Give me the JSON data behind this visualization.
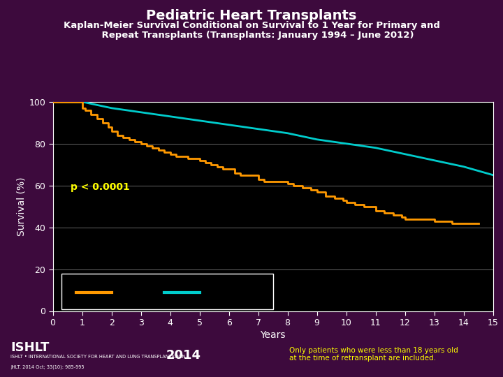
{
  "title": "Pediatric Heart Transplants",
  "subtitle_line1": "Kaplan-Meier Survival Conditional on Survival to 1 Year for Primary and",
  "subtitle_line2": "    Repeat Transplants (Transplants: January 1994 – June 2012)",
  "xlabel": "Years",
  "ylabel": "Survival (%)",
  "bg_outer": "#3d0a3d",
  "bg_plot": "#000000",
  "title_color": "#ffffff",
  "subtitle_color": "#ffffff",
  "axis_label_color": "#ffffff",
  "tick_color": "#ffffff",
  "grid_color": "#666666",
  "pvalue_text": "p < 0.0001",
  "pvalue_color": "#ffff00",
  "annotation_text": "Only patients who were less than 18 years old\nat the time of retransplant are included.",
  "annotation_color": "#ffff00",
  "xlim": [
    0,
    15
  ],
  "ylim": [
    0,
    100
  ],
  "xticks": [
    0,
    1,
    2,
    3,
    4,
    5,
    6,
    7,
    8,
    9,
    10,
    11,
    12,
    13,
    14,
    15
  ],
  "yticks": [
    0,
    20,
    40,
    60,
    80,
    100
  ],
  "primary_color": "#00cccc",
  "repeat_color": "#ff9900",
  "primary_x": [
    0,
    1,
    2,
    3,
    4,
    5,
    6,
    7,
    8,
    9,
    10,
    11,
    12,
    13,
    14,
    15
  ],
  "primary_y": [
    100,
    100,
    97,
    95,
    93,
    91,
    89,
    87,
    85,
    82,
    80,
    78,
    75,
    72,
    69,
    65
  ],
  "repeat_x": [
    0,
    0.5,
    1,
    1.1,
    1.3,
    1.5,
    1.7,
    1.9,
    2.0,
    2.2,
    2.4,
    2.6,
    2.8,
    3.0,
    3.2,
    3.4,
    3.6,
    3.8,
    4.0,
    4.2,
    4.4,
    4.6,
    4.8,
    5.0,
    5.2,
    5.4,
    5.6,
    5.8,
    6.0,
    6.2,
    6.4,
    6.6,
    6.8,
    7.0,
    7.2,
    7.4,
    7.6,
    7.8,
    8.0,
    8.2,
    8.5,
    8.8,
    9.0,
    9.3,
    9.6,
    9.9,
    10.0,
    10.3,
    10.6,
    11.0,
    11.3,
    11.6,
    11.9,
    12.0,
    12.3,
    12.6,
    13.0,
    13.3,
    13.6,
    14.0,
    14.3,
    14.5
  ],
  "repeat_y": [
    100,
    100,
    97,
    96,
    94,
    92,
    90,
    88,
    86,
    84,
    83,
    82,
    81,
    80,
    79,
    78,
    77,
    76,
    75,
    74,
    74,
    73,
    73,
    72,
    71,
    70,
    69,
    68,
    68,
    66,
    65,
    65,
    65,
    63,
    62,
    62,
    62,
    62,
    61,
    60,
    59,
    58,
    57,
    55,
    54,
    53,
    52,
    51,
    50,
    48,
    47,
    46,
    45,
    44,
    44,
    44,
    43,
    43,
    42,
    42,
    42,
    42
  ]
}
